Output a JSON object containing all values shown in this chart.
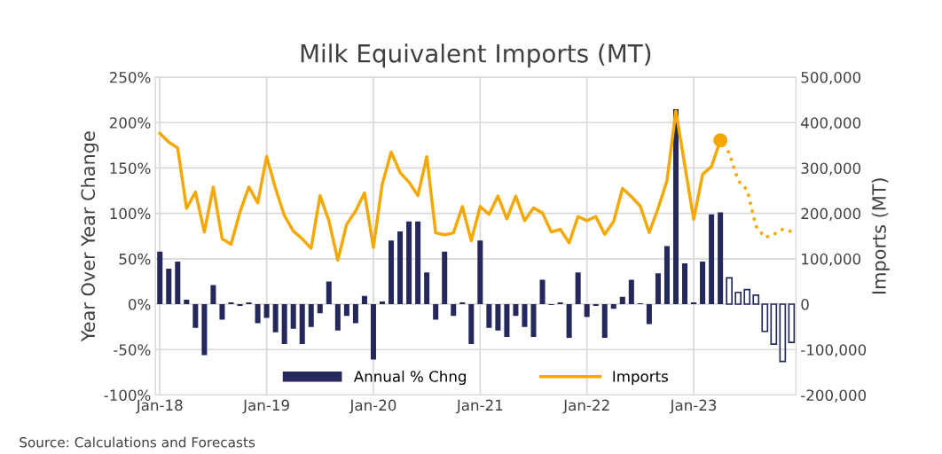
{
  "chart_data": {
    "type": "bar",
    "title": "Milk Equivalent Imports (MT)",
    "ylabel": "Year Over Year Change",
    "y2label": "Imports (MT)",
    "categories": [
      "Jan-18",
      null,
      null,
      null,
      null,
      null,
      null,
      null,
      null,
      null,
      null,
      null,
      "Jan-19",
      null,
      null,
      null,
      null,
      null,
      null,
      null,
      null,
      null,
      null,
      null,
      "Jan-20",
      null,
      null,
      null,
      null,
      null,
      null,
      null,
      null,
      null,
      null,
      null,
      "Jan-21",
      null,
      null,
      null,
      null,
      null,
      null,
      null,
      null,
      null,
      null,
      null,
      "Jan-22",
      null,
      null,
      null,
      null,
      null,
      null,
      null,
      null,
      null,
      null,
      null,
      "Jan-23",
      null,
      null,
      null,
      null,
      null,
      null,
      null,
      null,
      null,
      null,
      null
    ],
    "series": [
      {
        "name": "Annual % Chng",
        "color": "#24285b",
        "values": [
          58,
          39,
          47,
          5,
          -26,
          -56,
          21,
          -17,
          2,
          -2,
          2,
          -21,
          -15,
          -31,
          -44,
          -27,
          -44,
          -25,
          -10,
          25,
          -29,
          -13,
          -21,
          9,
          -61,
          3,
          70,
          80,
          91,
          91,
          35,
          -17,
          58,
          -13,
          2,
          -44,
          70,
          -26,
          -29,
          -36,
          -13,
          -25,
          -36,
          27,
          -1,
          2,
          -37,
          35,
          -14,
          -2,
          -37,
          -5,
          8,
          27,
          1,
          -22,
          34,
          64,
          215,
          45,
          2,
          47,
          99,
          101,
          null,
          null,
          null,
          null,
          null,
          null,
          null,
          null
        ]
      },
      {
        "type": "bar",
        "color": "#24285b",
        "line_style": "solid",
        "values": [
          null,
          null,
          null,
          null,
          null,
          null,
          null,
          null,
          null,
          null,
          null,
          null,
          null,
          null,
          null,
          null,
          null,
          null,
          null,
          null,
          null,
          null,
          null,
          null,
          null,
          null,
          null,
          null,
          null,
          null,
          null,
          null,
          null,
          null,
          null,
          null,
          null,
          null,
          null,
          null,
          null,
          null,
          null,
          null,
          null,
          null,
          null,
          null,
          null,
          null,
          null,
          null,
          null,
          null,
          null,
          null,
          null,
          null,
          null,
          null,
          null,
          null,
          null,
          null,
          29,
          13,
          16,
          10,
          -30,
          -44,
          -63,
          -42
        ]
      },
      {
        "name": "Imports",
        "type": "line",
        "axis": "y2",
        "color": "#f5a800",
        "line_style": "solid",
        "values": [
          376000,
          357000,
          344000,
          211000,
          247000,
          159000,
          258000,
          144000,
          132000,
          203000,
          258000,
          223000,
          325000,
          255000,
          195000,
          161000,
          144000,
          123000,
          239000,
          184000,
          97000,
          176000,
          205000,
          245000,
          125000,
          265000,
          335000,
          290000,
          269000,
          239000,
          325000,
          157000,
          153000,
          157000,
          215000,
          140000,
          215000,
          198000,
          238000,
          188000,
          238000,
          184000,
          212000,
          201000,
          159000,
          165000,
          135000,
          193000,
          184000,
          193000,
          154000,
          182000,
          255000,
          237000,
          216000,
          158000,
          211000,
          272000,
          426000,
          306000,
          187000,
          286000,
          303000,
          361000,
          null,
          null,
          null,
          null,
          null,
          null,
          null,
          null
        ]
      },
      {
        "type": "line",
        "axis": "y2",
        "color": "#f5a800",
        "line_style": "dotted",
        "values": [
          null,
          null,
          null,
          null,
          null,
          null,
          null,
          null,
          null,
          null,
          null,
          null,
          null,
          null,
          null,
          null,
          null,
          null,
          null,
          null,
          null,
          null,
          null,
          null,
          null,
          null,
          null,
          null,
          null,
          null,
          null,
          null,
          null,
          null,
          null,
          null,
          null,
          null,
          null,
          null,
          null,
          null,
          null,
          null,
          null,
          null,
          null,
          null,
          null,
          null,
          null,
          null,
          null,
          null,
          null,
          null,
          null,
          null,
          null,
          null,
          null,
          null,
          null,
          361000,
          333000,
          272000,
          252000,
          172000,
          147000,
          154000,
          165000,
          160000
        ]
      },
      {
        "type": "scatter",
        "axis": "y2",
        "color": "#f5a800",
        "marker": "circle",
        "values": [
          null,
          null,
          null,
          null,
          null,
          null,
          null,
          null,
          null,
          null,
          null,
          null,
          null,
          null,
          null,
          null,
          null,
          null,
          null,
          null,
          null,
          null,
          null,
          null,
          null,
          null,
          null,
          null,
          null,
          null,
          null,
          null,
          null,
          null,
          null,
          null,
          null,
          null,
          null,
          null,
          null,
          null,
          null,
          null,
          null,
          null,
          null,
          null,
          null,
          null,
          null,
          null,
          null,
          null,
          null,
          null,
          null,
          null,
          null,
          null,
          null,
          null,
          null,
          361000,
          null,
          null,
          null,
          null,
          null,
          null,
          null,
          null
        ]
      }
    ],
    "ylim": [
      -100,
      250
    ],
    "yticks": [
      {
        "value": -100,
        "label": "-100%"
      },
      {
        "value": -50,
        "label": "-50%"
      },
      {
        "value": 0,
        "label": "0%"
      },
      {
        "value": 50,
        "label": "50%"
      },
      {
        "value": 100,
        "label": "100%"
      },
      {
        "value": 150,
        "label": "150%"
      },
      {
        "value": 200,
        "label": "200%"
      },
      {
        "value": 250,
        "label": "250%"
      }
    ],
    "y2lim": [
      -200000,
      500000
    ],
    "y2ticks": [
      {
        "value": -200000,
        "label": "-200,000"
      },
      {
        "value": -100000,
        "label": "-100,000"
      },
      {
        "value": 0,
        "label": "0"
      },
      {
        "value": 100000,
        "label": "100,000"
      },
      {
        "value": 200000,
        "label": "200,000"
      },
      {
        "value": 300000,
        "label": "300,000"
      },
      {
        "value": 400000,
        "label": "400,000"
      },
      {
        "value": 500000,
        "label": "500,000"
      }
    ],
    "grid": true,
    "legend": "bottom",
    "annotations": [
      "Source: Calculations and Forecasts"
    ]
  }
}
